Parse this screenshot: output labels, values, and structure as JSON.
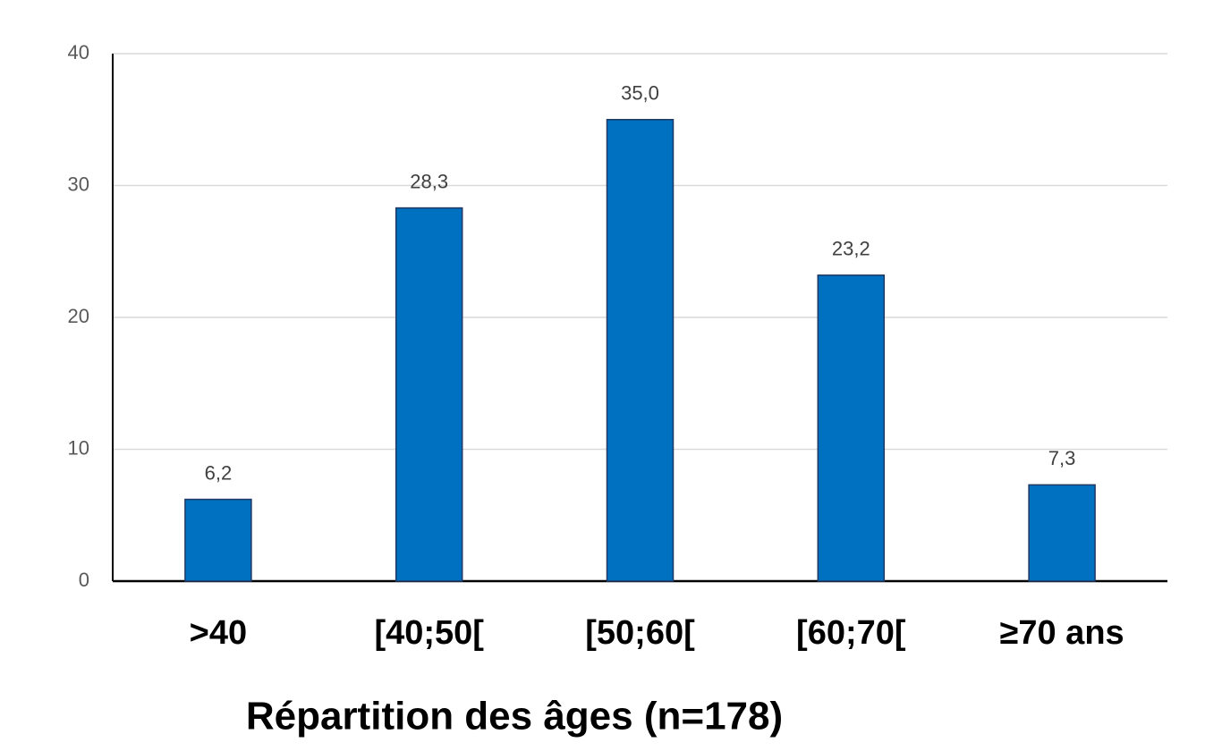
{
  "chart_data": {
    "type": "bar",
    "title": "Répartition des âges (n=178)",
    "categories": [
      ">40",
      "[40;50[",
      "[50;60[",
      "[60;70[",
      "≥70 ans"
    ],
    "values": [
      6.2,
      28.3,
      35.0,
      23.2,
      7.3
    ],
    "value_labels": [
      "6,2",
      "28,3",
      "35,0",
      "23,2",
      "7,3"
    ],
    "color": "#0070c0",
    "ylim": [
      0,
      40
    ],
    "yticks": [
      0,
      10,
      20,
      30,
      40
    ],
    "grid": true
  }
}
